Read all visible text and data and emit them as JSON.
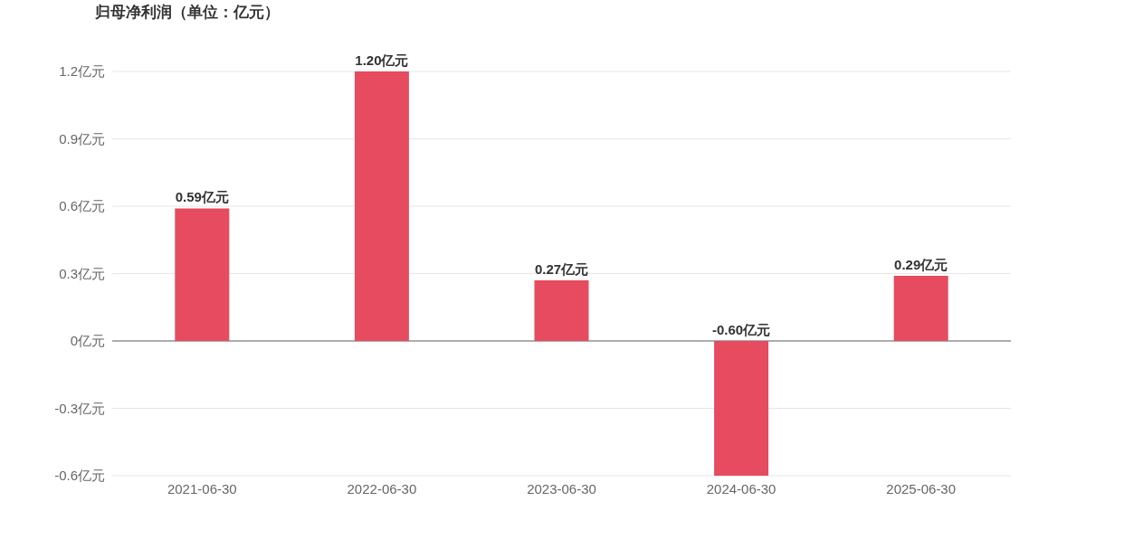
{
  "chart_data": {
    "type": "bar",
    "title": "归母净利润（单位：亿元）",
    "categories": [
      "2021-06-30",
      "2022-06-30",
      "2023-06-30",
      "2024-06-30",
      "2025-06-30"
    ],
    "values": [
      0.59,
      1.2,
      0.27,
      -0.6,
      0.29
    ],
    "value_labels": [
      "0.59亿元",
      "1.20亿元",
      "0.27亿元",
      "-0.60亿元",
      "0.29亿元"
    ],
    "color": "#e64b5f",
    "ylim": [
      -0.6,
      1.2
    ],
    "yticks": [
      {
        "value": -0.6,
        "label": "-0.6亿元"
      },
      {
        "value": -0.3,
        "label": "-0.3亿元"
      },
      {
        "value": 0,
        "label": "0亿元"
      },
      {
        "value": 0.3,
        "label": "0.3亿元"
      },
      {
        "value": 0.6,
        "label": "0.6亿元"
      },
      {
        "value": 0.9,
        "label": "0.9亿元"
      },
      {
        "value": 1.2,
        "label": "1.2亿元"
      }
    ],
    "grid": "y"
  }
}
